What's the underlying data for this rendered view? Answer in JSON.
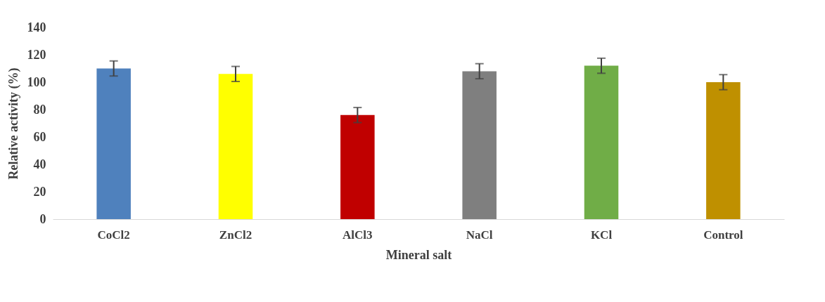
{
  "chart_data": {
    "type": "bar",
    "xlabel": "Mineral salt",
    "ylabel": "Relative activity (%)",
    "categories": [
      "CoCl2",
      "ZnCl2",
      "AlCl3",
      "NaCl",
      "KCl",
      "Control"
    ],
    "values": [
      110,
      106,
      76,
      108,
      112,
      100
    ],
    "errors": [
      5.5,
      5.5,
      5.5,
      5.5,
      5.5,
      5.5
    ],
    "colors": [
      "#4f81bd",
      "#ffff00",
      "#c00000",
      "#7f7f7f",
      "#70ad47",
      "#bf9000"
    ],
    "ylim": [
      0,
      140
    ],
    "yticks": [
      0,
      20,
      40,
      60,
      80,
      100,
      120,
      140
    ],
    "grid": false,
    "legend": false
  }
}
